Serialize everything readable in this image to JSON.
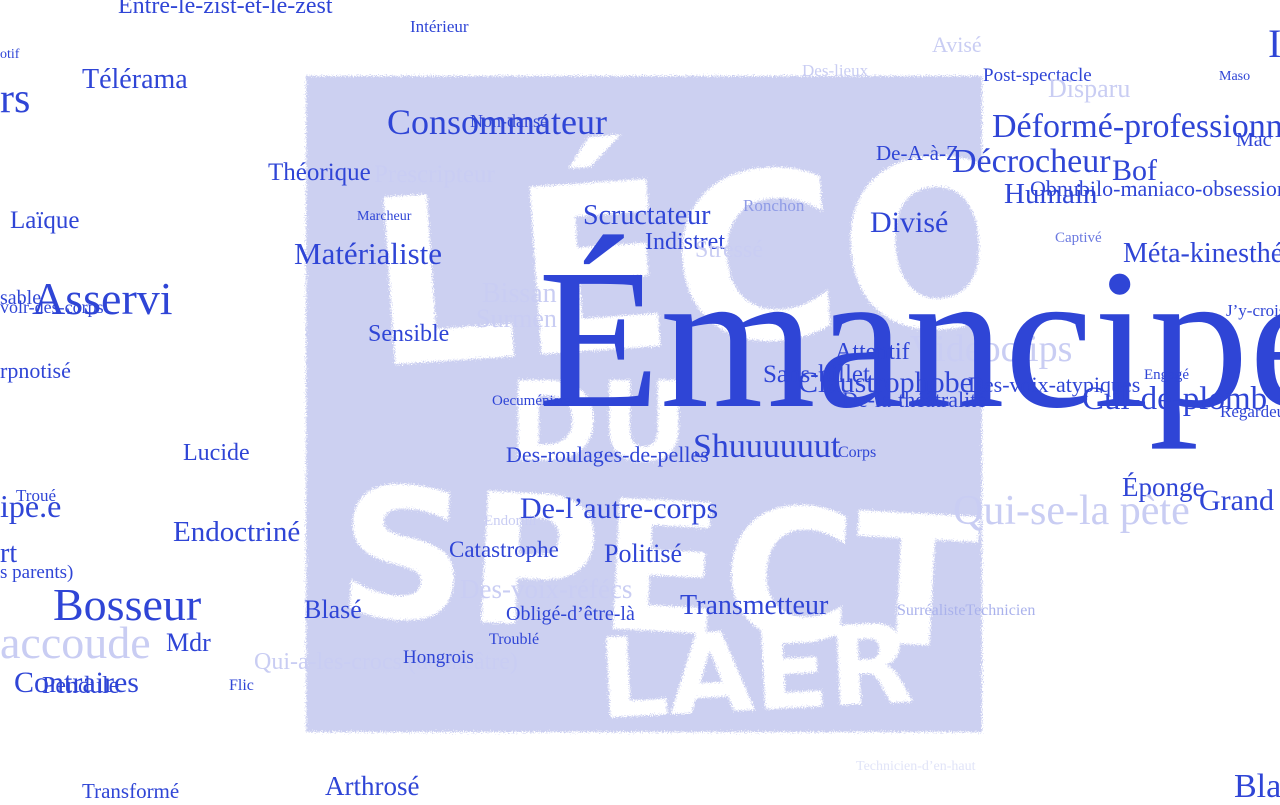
{
  "colors": {
    "word": "#2f45d6",
    "faint_word": "#c9cdf3",
    "stamp": "#ccd0f1",
    "background": "#ffffff"
  },
  "stamp": {
    "text": [
      "L'ÉCO",
      "DU",
      "SPECTATEUR",
      "ÉCLAIRÉ"
    ]
  },
  "words": [
    {
      "id": "w1",
      "text": "Entre-le-zist-et-le-zest"
    },
    {
      "id": "w2",
      "text": "Intérieur"
    },
    {
      "id": "w3",
      "text": "Télérama"
    },
    {
      "id": "w4",
      "text": "otif"
    },
    {
      "id": "w5",
      "text": "rs"
    },
    {
      "id": "w6",
      "text": "Consommateur"
    },
    {
      "id": "w7",
      "text": "Non-dansé"
    },
    {
      "id": "w8",
      "text": "Théorique"
    },
    {
      "id": "w9",
      "text": "Prescripteur"
    },
    {
      "id": "w10",
      "text": "Laïque"
    },
    {
      "id": "w11",
      "text": "Marcheur"
    },
    {
      "id": "w12",
      "text": "Scructateur"
    },
    {
      "id": "w13",
      "text": "Ronchon"
    },
    {
      "id": "w14",
      "text": "Indistret"
    },
    {
      "id": "w15",
      "text": "Stressé"
    },
    {
      "id": "w16",
      "text": "Matérialiste"
    },
    {
      "id": "w17",
      "text": "Divisé"
    },
    {
      "id": "w18",
      "text": "Asservi"
    },
    {
      "id": "w19",
      "text": "sable"
    },
    {
      "id": "w20",
      "text": "volr-des-corps"
    },
    {
      "id": "w21",
      "text": "Bissan"
    },
    {
      "id": "w22",
      "text": "Surmen"
    },
    {
      "id": "w23",
      "text": "Sensible"
    },
    {
      "id": "w24",
      "text": "rpnotisé"
    },
    {
      "id": "w25",
      "text": "Émancipé"
    },
    {
      "id": "w26",
      "text": "Attentif"
    },
    {
      "id": "w27",
      "text": "Sans-billet"
    },
    {
      "id": "w28",
      "text": "Claustrophobe"
    },
    {
      "id": "w29",
      "text": "Des-voix-atypiques"
    },
    {
      "id": "w30",
      "text": "De-la-théâtralité"
    },
    {
      "id": "w31",
      "text": "Oecuméniste"
    },
    {
      "id": "w32",
      "text": "Vidéoclips"
    },
    {
      "id": "w33",
      "text": "Lucide"
    },
    {
      "id": "w34",
      "text": "Des-roulages-de-pelles"
    },
    {
      "id": "w35",
      "text": "Shuuuuuut"
    },
    {
      "id": "w36",
      "text": "Corps"
    },
    {
      "id": "w37",
      "text": "Troué"
    },
    {
      "id": "w38",
      "text": "ipe.e"
    },
    {
      "id": "w39",
      "text": "De-l’autre-corps"
    },
    {
      "id": "w40",
      "text": "Endormi"
    },
    {
      "id": "w41",
      "text": "Endoctriné"
    },
    {
      "id": "w42",
      "text": "Catastrophe"
    },
    {
      "id": "w43",
      "text": "Politisé"
    },
    {
      "id": "w44",
      "text": "rt"
    },
    {
      "id": "w45",
      "text": "s parents)"
    },
    {
      "id": "w46",
      "text": "Des-voix-réfécs"
    },
    {
      "id": "w47",
      "text": "Bosseur"
    },
    {
      "id": "w48",
      "text": "Blasé"
    },
    {
      "id": "w49",
      "text": "Obligé-d’être-là"
    },
    {
      "id": "w50",
      "text": "Transmetteur"
    },
    {
      "id": "w51",
      "text": "accoude"
    },
    {
      "id": "w52",
      "text": "Mdr"
    },
    {
      "id": "w53",
      "text": "Troublé"
    },
    {
      "id": "w54",
      "text": "Qui-a-les-crocs (de théâtre)"
    },
    {
      "id": "w55",
      "text": "Hongrois"
    },
    {
      "id": "w56",
      "text": "Contraires"
    },
    {
      "id": "w57",
      "text": "Pendule"
    },
    {
      "id": "w58",
      "text": "Flic"
    },
    {
      "id": "w59",
      "text": "Transformé"
    },
    {
      "id": "w60",
      "text": "Arthrosé"
    },
    {
      "id": "w61",
      "text": "Avisé"
    },
    {
      "id": "w62",
      "text": "Des-lieux"
    },
    {
      "id": "w63",
      "text": "Post-spectacle"
    },
    {
      "id": "w64",
      "text": "Disparu"
    },
    {
      "id": "w65",
      "text": "Maso"
    },
    {
      "id": "w66",
      "text": "I"
    },
    {
      "id": "w67",
      "text": "Déformé-professionnel"
    },
    {
      "id": "w68",
      "text": "Mac"
    },
    {
      "id": "w69",
      "text": "De-A-à-Z"
    },
    {
      "id": "w70",
      "text": "Décrocheur"
    },
    {
      "id": "w71",
      "text": "Bof"
    },
    {
      "id": "w72",
      "text": "Humain"
    },
    {
      "id": "w73",
      "text": "Obnubilo-maniaco-obsessionnel"
    },
    {
      "id": "w74",
      "text": "Captivé"
    },
    {
      "id": "w75",
      "text": "Méta-kinesthésique"
    },
    {
      "id": "w76",
      "text": "J’y-crois"
    },
    {
      "id": "w77",
      "text": "Engagé"
    },
    {
      "id": "w78",
      "text": "Cul-de-plomb"
    },
    {
      "id": "w79",
      "text": "Regardeur"
    },
    {
      "id": "w80",
      "text": "Éponge"
    },
    {
      "id": "w81",
      "text": "Qui-se-la pète"
    },
    {
      "id": "w82",
      "text": "Grand"
    },
    {
      "id": "w83",
      "text": "SurréalisteTechnicien"
    },
    {
      "id": "w84",
      "text": "Bla"
    },
    {
      "id": "w85",
      "text": "Technicien-d’en-haut"
    }
  ]
}
